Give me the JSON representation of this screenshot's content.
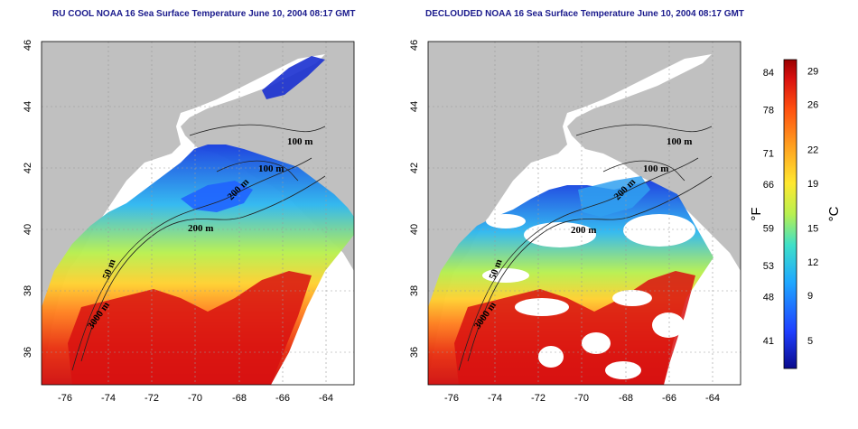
{
  "maps": [
    {
      "title": "RU COOL NOAA 16 Sea Surface Temperature June 10, 2004 08:17 GMT",
      "contours": [
        "100 m",
        "100 m",
        "200 m",
        "200 m",
        "50 m",
        "3000 m"
      ]
    },
    {
      "title": "DECLOUDED NOAA 16 Sea Surface Temperature June 10, 2004 08:17 GMT",
      "contours": [
        "100 m",
        "100 m",
        "200 m",
        "200 m",
        "50 m",
        "3000 m"
      ]
    }
  ],
  "axes": {
    "x_ticks": [
      "-76",
      "-74",
      "-72",
      "-70",
      "-68",
      "-66",
      "-64"
    ],
    "y_ticks": [
      "36",
      "38",
      "40",
      "42",
      "44",
      "46"
    ]
  },
  "colorbar": {
    "fahrenheit_label": "°F",
    "celsius_label": "°C",
    "fahrenheit_ticks": [
      "84",
      "78",
      "71",
      "66",
      "59",
      "53",
      "48",
      "41"
    ],
    "celsius_ticks": [
      "29",
      "26",
      "22",
      "19",
      "15",
      "12",
      "9",
      "5"
    ],
    "fahrenheit_values": [
      84,
      78,
      71,
      66,
      59,
      53,
      48,
      41
    ],
    "celsius_values": [
      29,
      26,
      22,
      19,
      15,
      12,
      9,
      5
    ],
    "range_c": [
      2.5,
      30.0
    ],
    "colors": [
      "#0a0a8c",
      "#1f3fff",
      "#1fa8ff",
      "#3fe0c8",
      "#b8f050",
      "#ffe830",
      "#ffa020",
      "#ff5010",
      "#d81010",
      "#9a0000"
    ]
  },
  "colors": {
    "land": "#c0c0c0",
    "cloud": "#ffffff",
    "grid": "#9a9a9a",
    "title": "#1a1a8c"
  }
}
